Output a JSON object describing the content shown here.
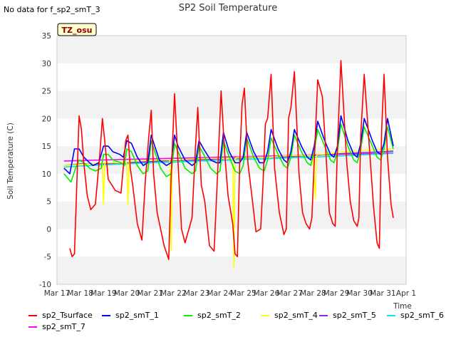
{
  "corner_note": "No data for f_sp2_smT_3",
  "badge": "TZ_osu",
  "chart_data": {
    "type": "line",
    "title": "SP2 Soil Temperature",
    "xlabel": "Time",
    "ylabel": "Soil Temperature (C)",
    "ylim": [
      -10,
      35
    ],
    "yticks": [
      -10,
      -5,
      0,
      5,
      10,
      15,
      20,
      25,
      30,
      35
    ],
    "xlim": [
      0,
      15
    ],
    "xtick_labels": [
      "Mar 17",
      "Mar 18",
      "Mar 19",
      "Mar 20",
      "Mar 21",
      "Mar 22",
      "Mar 23",
      "Mar 24",
      "Mar 25",
      "Mar 26",
      "Mar 27",
      "Mar 28",
      "Mar 29",
      "Mar 30",
      "Mar 31",
      "Apr 1"
    ],
    "xtick_values": [
      0,
      1,
      2,
      3,
      4,
      5,
      6,
      7,
      8,
      9,
      10,
      11,
      12,
      13,
      14,
      15
    ],
    "grid": "horizontal bands",
    "legend_position": "bottom",
    "series": [
      {
        "name": "sp2_Tsurface",
        "color": "#ff0000",
        "x": [
          0.55,
          0.65,
          0.75,
          0.85,
          0.95,
          1.05,
          1.15,
          1.3,
          1.45,
          1.65,
          1.85,
          1.95,
          2.05,
          2.2,
          2.5,
          2.75,
          2.95,
          3.05,
          3.15,
          3.25,
          3.45,
          3.65,
          3.8,
          3.95,
          4.05,
          4.15,
          4.3,
          4.6,
          4.8,
          4.9,
          5.05,
          5.2,
          5.35,
          5.5,
          5.8,
          5.95,
          6.05,
          6.2,
          6.35,
          6.55,
          6.75,
          6.9,
          7.05,
          7.2,
          7.35,
          7.55,
          7.65,
          7.75,
          7.85,
          7.95,
          8.05,
          8.2,
          8.4,
          8.55,
          8.75,
          8.85,
          8.95,
          9.05,
          9.2,
          9.35,
          9.55,
          9.75,
          9.85,
          9.95,
          10.05,
          10.2,
          10.4,
          10.55,
          10.7,
          10.85,
          10.95,
          11.05,
          11.2,
          11.4,
          11.55,
          11.7,
          11.85,
          11.95,
          12.05,
          12.2,
          12.45,
          12.6,
          12.75,
          12.9,
          12.97,
          13.05,
          13.2,
          13.45,
          13.6,
          13.75,
          13.85,
          13.95,
          14.05,
          14.2,
          14.35,
          14.45
        ],
        "values": [
          -3.5,
          -5,
          -4.5,
          8,
          20.5,
          18,
          12,
          6,
          3.5,
          4.5,
          14,
          20,
          16,
          9,
          7,
          6.5,
          16,
          17,
          11,
          8,
          1,
          -2,
          9,
          17,
          21.5,
          10,
          3,
          -3,
          -5.5,
          9,
          24.5,
          12,
          0,
          -2.5,
          2,
          15,
          22,
          8,
          5,
          -3,
          -4,
          10,
          25,
          14,
          6,
          1,
          -4.5,
          -5,
          12,
          22.5,
          25.5,
          12,
          5,
          -0.5,
          0,
          8,
          19,
          20,
          28,
          11,
          3,
          -1,
          0,
          20,
          22,
          28.5,
          10,
          3,
          1,
          0,
          2,
          12,
          27,
          24,
          14,
          3,
          1,
          0.5,
          15,
          30.5,
          12,
          5,
          1.5,
          0.5,
          2,
          17,
          28,
          13,
          4,
          -2.5,
          -3.5,
          18,
          28,
          13,
          4.5,
          2
        ]
      },
      {
        "name": "sp2_smT_1",
        "color": "#0000ff",
        "x": [
          0.3,
          0.55,
          0.75,
          0.95,
          1.15,
          1.4,
          1.55,
          1.8,
          2.0,
          2.2,
          2.4,
          2.7,
          2.85,
          3.0,
          3.2,
          3.45,
          3.7,
          3.9,
          4.05,
          4.2,
          4.4,
          4.7,
          4.9,
          5.05,
          5.2,
          5.5,
          5.8,
          5.95,
          6.1,
          6.3,
          6.6,
          6.85,
          7.0,
          7.15,
          7.4,
          7.65,
          7.85,
          8.0,
          8.15,
          8.45,
          8.7,
          8.9,
          9.05,
          9.2,
          9.5,
          9.75,
          9.9,
          10.05,
          10.2,
          10.5,
          10.75,
          10.9,
          11.05,
          11.2,
          11.5,
          11.75,
          11.9,
          12.05,
          12.2,
          12.5,
          12.75,
          12.9,
          13.05,
          13.2,
          13.55,
          13.75,
          13.9,
          14.05,
          14.2,
          14.45
        ],
        "values": [
          11,
          10,
          14.5,
          14.5,
          13,
          12,
          11.5,
          12,
          15,
          15,
          14,
          13.5,
          13,
          16,
          15.5,
          13,
          11.5,
          12,
          17,
          15,
          12.5,
          11.5,
          12,
          17,
          15,
          12.5,
          11.5,
          12,
          16,
          14.5,
          12.5,
          12,
          12,
          17.5,
          14,
          12,
          12,
          13,
          17.5,
          14,
          12,
          12,
          14,
          18,
          14.5,
          12.5,
          12,
          14,
          18,
          15,
          13,
          12.5,
          15,
          19.5,
          16,
          13.5,
          13,
          15,
          20.5,
          16,
          13.5,
          13,
          15.5,
          20,
          16,
          14,
          13.5,
          15.5,
          20,
          15
        ]
      },
      {
        "name": "sp2_smT_2",
        "color": "#00ee00",
        "x": [
          0.3,
          0.6,
          0.8,
          0.95,
          1.15,
          1.4,
          1.65,
          1.9,
          2.0,
          2.2,
          2.4,
          2.75,
          2.9,
          3.0,
          3.2,
          3.45,
          3.7,
          3.9,
          4.05,
          4.2,
          4.45,
          4.7,
          4.9,
          5.05,
          5.2,
          5.5,
          5.8,
          5.95,
          6.1,
          6.3,
          6.6,
          6.85,
          7.0,
          7.15,
          7.4,
          7.65,
          7.85,
          8.0,
          8.15,
          8.45,
          8.7,
          8.9,
          9.05,
          9.2,
          9.5,
          9.75,
          9.9,
          10.05,
          10.2,
          10.5,
          10.75,
          10.9,
          11.05,
          11.2,
          11.5,
          11.75,
          11.9,
          12.05,
          12.2,
          12.5,
          12.75,
          12.9,
          13.05,
          13.2,
          13.55,
          13.75,
          13.9,
          14.05,
          14.2,
          14.45
        ],
        "values": [
          10,
          8.5,
          11,
          12.5,
          12,
          11,
          10.5,
          11,
          13.5,
          13.5,
          12.5,
          12,
          11.5,
          14.5,
          14,
          11.5,
          10,
          10.5,
          16,
          14,
          11,
          9.5,
          10,
          15.5,
          14,
          11,
          10,
          10.5,
          15,
          13.5,
          11,
          10,
          10.5,
          16,
          13,
          10.5,
          10,
          11.5,
          16.5,
          13,
          11,
          10.5,
          12.5,
          16.5,
          13.5,
          11.5,
          11,
          13,
          17,
          14,
          12,
          11.5,
          14,
          18,
          15,
          12.5,
          12,
          14,
          19,
          15,
          12.5,
          12,
          14.5,
          18.5,
          15,
          13,
          12.5,
          14.5,
          18.5,
          14.5
        ]
      },
      {
        "name": "sp2_smT_4",
        "color": "#ffff00",
        "x": [
          0.3,
          1.5,
          1.95,
          2.0,
          2.05,
          2.1,
          2.2,
          3.0,
          3.05,
          3.1,
          3.2,
          4.0,
          4.85,
          4.9,
          4.95,
          5.1,
          6.5,
          7.55,
          7.6,
          7.65,
          7.75,
          9.0,
          10.0,
          11.0,
          11.1,
          11.15,
          11.2,
          11.4,
          12.5,
          13.5,
          14.45
        ],
        "values": [
          11.5,
          11.8,
          12,
          4.5,
          12,
          12,
          12,
          12,
          4.5,
          12.5,
          12.3,
          12.5,
          12.5,
          -4,
          12.5,
          12.5,
          12.8,
          12.8,
          -7,
          12.8,
          13,
          13,
          13.3,
          13.3,
          5.5,
          13.3,
          13.5,
          13.5,
          14,
          14.3,
          14.5
        ]
      },
      {
        "name": "sp2_smT_5",
        "color": "#8a2be2",
        "x": [
          0.3,
          1.0,
          2.0,
          3.0,
          4.0,
          5.0,
          6.0,
          7.0,
          8.0,
          9.0,
          10.0,
          11.0,
          12.0,
          13.0,
          14.0,
          14.45
        ],
        "values": [
          11.5,
          11.8,
          11.8,
          12.0,
          12.2,
          12.4,
          12.5,
          12.7,
          12.9,
          13.0,
          13.1,
          13.3,
          13.6,
          13.8,
          14.0,
          14.1
        ]
      },
      {
        "name": "sp2_smT_6",
        "color": "#00e5ee",
        "x": [
          0.3,
          1.0,
          2.0,
          3.0,
          4.0,
          5.0,
          6.0,
          7.0,
          8.0,
          9.0,
          10.0,
          11.0,
          12.0,
          13.0,
          14.0,
          14.45
        ],
        "values": [
          11.2,
          11.4,
          11.6,
          11.8,
          12.0,
          12.1,
          12.3,
          12.4,
          12.6,
          12.7,
          12.9,
          13.0,
          13.2,
          13.4,
          13.6,
          13.7
        ]
      },
      {
        "name": "sp2_smT_7",
        "color": "#ff00ff",
        "x": [
          0.3,
          1.0,
          2.0,
          3.0,
          4.0,
          5.0,
          6.0,
          7.0,
          8.0,
          9.0,
          10.0,
          11.0,
          12.0,
          13.0,
          14.0,
          14.45
        ],
        "values": [
          12.3,
          12.4,
          12.5,
          12.6,
          12.7,
          12.8,
          12.9,
          13.0,
          13.1,
          13.2,
          13.3,
          13.4,
          13.5,
          13.6,
          13.7,
          13.8
        ]
      }
    ]
  }
}
